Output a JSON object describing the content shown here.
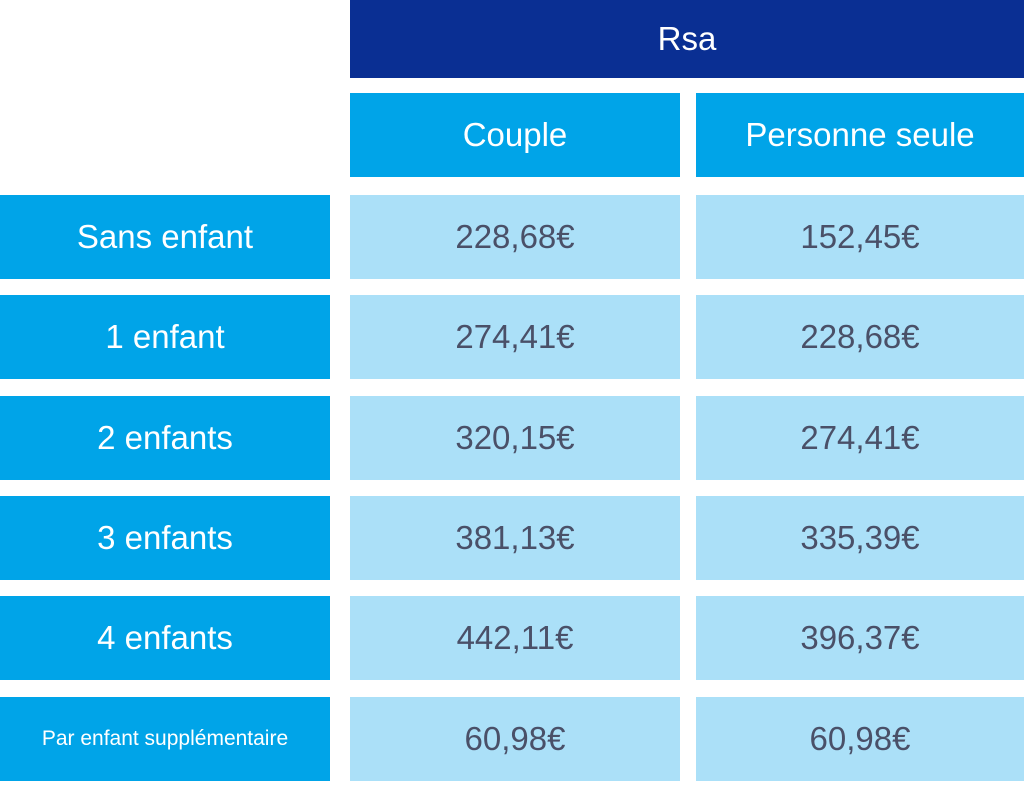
{
  "table": {
    "title": "Rsa",
    "columns": [
      "Couple",
      "Personne seule"
    ],
    "rows": [
      {
        "label": "Sans enfant",
        "couple": "228,68€",
        "seule": "152,45€"
      },
      {
        "label": "1 enfant",
        "couple": "274,41€",
        "seule": "228,68€"
      },
      {
        "label": "2 enfants",
        "couple": "320,15€",
        "seule": "274,41€"
      },
      {
        "label": "3 enfants",
        "couple": "381,13€",
        "seule": "335,39€"
      },
      {
        "label": "4 enfants",
        "couple": "442,11€",
        "seule": "396,37€"
      },
      {
        "label": "Par enfant supplémentaire",
        "couple": "60,98€",
        "seule": "60,98€"
      }
    ]
  },
  "colors": {
    "title_bg": "#0a2f93",
    "header_bg": "#00a4e8",
    "value_bg": "#abe0f8",
    "value_text": "#4a5068",
    "header_text": "#ffffff"
  }
}
